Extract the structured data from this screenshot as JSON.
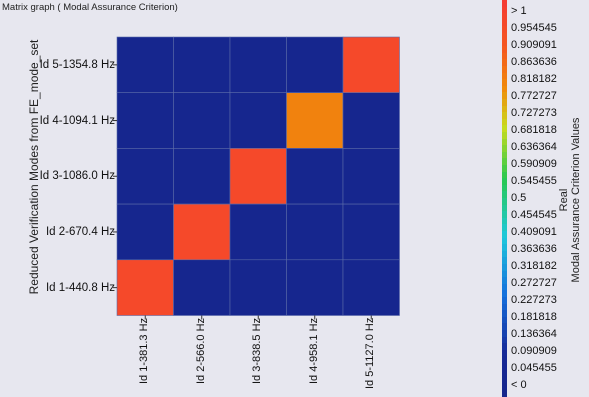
{
  "chart_data": {
    "type": "heatmap",
    "title": "Matrix graph ( Modal Assurance Criterion)",
    "ylabel": "Reduced Verification Modes from FE_mode_set",
    "row_labels": [
      "Id 5-1354.8 Hz",
      "Id 4-1094.1 Hz",
      "Id 3-1086.0 Hz",
      "Id 2-670.4 Hz",
      "Id 1-440.8 Hz"
    ],
    "column_labels": [
      "Id 1-381.3 Hz",
      "Id 2-566.0 Hz",
      "Id 3-838.5 Hz",
      "Id 4-958.1 Hz",
      "Id 5-1127.0 Hz"
    ],
    "values": [
      [
        0.02,
        0.02,
        0.02,
        0.02,
        0.95
      ],
      [
        0.02,
        0.02,
        0.02,
        0.8,
        0.02
      ],
      [
        0.02,
        0.02,
        0.95,
        0.02,
        0.02
      ],
      [
        0.02,
        0.95,
        0.02,
        0.02,
        0.02
      ],
      [
        0.95,
        0.02,
        0.02,
        0.02,
        0.02
      ]
    ],
    "colorbar": {
      "title_line1": "Real",
      "title_line2": "Modal Assurance Criterion Values",
      "ticks": [
        "> 1",
        "0.954545",
        "0.909091",
        "0.863636",
        "0.818182",
        "0.772727",
        "0.727273",
        "0.681818",
        "0.636364",
        "0.590909",
        "0.545455",
        "0.5",
        "0.454545",
        "0.409091",
        "0.363636",
        "0.318182",
        "0.272727",
        "0.227273",
        "0.181818",
        "0.136364",
        "0.090909",
        "0.045455",
        "< 0"
      ],
      "range": [
        0,
        1
      ]
    }
  }
}
